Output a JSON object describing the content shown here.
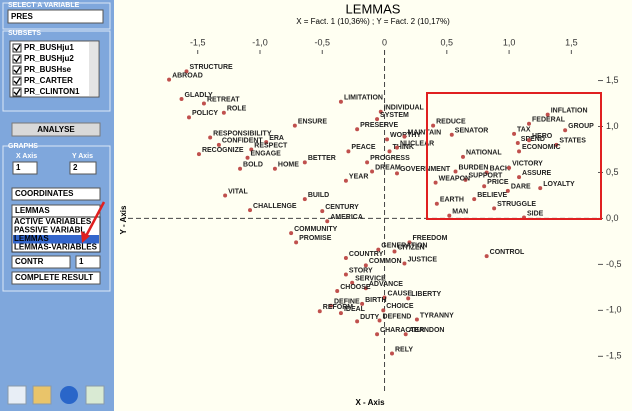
{
  "sidebar": {
    "variable_label": "SELECT A VARIABLE",
    "variable": "PRES",
    "subsets_label": "SUBSETS",
    "subsets": [
      "PR_BUSHju1",
      "PR_BUSHju2",
      "PR_BUSHse",
      "PR_CARTER",
      "PR_CLINTON1"
    ],
    "analyse_button": "ANALYSE",
    "graphs_label": "GRAPHS",
    "x_axis_label": "X Axis",
    "y_axis_label": "Y Axis",
    "x_axis_value": "1",
    "y_axis_value": "2",
    "mode": "COORDINATES",
    "element": "LEMMAS",
    "element_options": [
      "ACTIVE VARIABLES",
      "PASSIVE VARIABL",
      "LEMMAS",
      "LEMMAS-VARIABLES"
    ],
    "stat": "CONTR",
    "stat_value": "1",
    "result": "COMPLETE RESULT"
  },
  "chart_data": {
    "type": "scatter",
    "title": "LEMMAS",
    "subtitle": "X = Fact. 1 (10,36%) ; Y = Fact. 2 (10,17%)",
    "x_label": "X - Axis",
    "y_label": "Y - Axis",
    "color": "#c0504d",
    "xlim": [
      -2.14,
      1.73
    ],
    "ylim": [
      -1.91,
      2.05
    ],
    "xticks": [
      {
        "value": -1.5,
        "label": "-1,5"
      },
      {
        "value": -1,
        "label": "-1,0"
      },
      {
        "value": -0.5,
        "label": "-0,5"
      },
      0,
      {
        "value": 0.5,
        "label": "0,5"
      },
      {
        "value": 1,
        "label": "1,0"
      },
      {
        "value": 1.5,
        "label": "1,5"
      }
    ],
    "yticks": [
      {
        "value": 1.5,
        "label": "1,5"
      },
      {
        "value": 1,
        "label": "1,0"
      },
      {
        "value": 0.5,
        "label": "0,5"
      },
      {
        "value": 0,
        "label": "0,0"
      },
      {
        "value": -0.5,
        "label": "-0,5"
      },
      {
        "value": -1,
        "label": "-1,0"
      },
      {
        "value": -1.5,
        "label": "-1,5"
      }
    ],
    "labels": [
      "STRUCTURE",
      "ABROAD",
      "GLADLY",
      "RETREAT",
      "ROLE",
      "POLICY",
      "LIMITATION",
      "INDIVIDUAL",
      "SYSTEM",
      "ENSURE",
      "PRESERVE",
      "WORTHY",
      "MAINTAIN",
      "RESPONSIBILITY",
      "ERA",
      "CONFIDENT",
      "RESPECT",
      "RECOGNIZE",
      "ENGAGE",
      "BOLD",
      "HOME",
      "BETTER",
      "PEACE",
      "THINK",
      "NUCLEAR",
      "PROGRESS",
      "DREAM",
      "YEAR",
      "GOVERNMENT",
      "REDUCE",
      "SENATOR",
      "NATIONAL",
      "INFLATION",
      "FEDERAL",
      "GROUP",
      "TAX",
      "SPEND",
      "HERO",
      "STATES",
      "ECONOMIC",
      "BURDEN",
      "BACK",
      "VICTORY",
      "SUPPORT",
      "WEAPON",
      "ASSURE",
      "PRICE",
      "DARE",
      "LOYALTY",
      "BELIEVE",
      "EARTH",
      "STRUGGLE",
      "MAN",
      "SIDE",
      "CONTROL",
      "VITAL",
      "CHALLENGE",
      "BUILD",
      "CENTURY",
      "AMERICA",
      "COMMUNITY",
      "PROMISE",
      "FREEDOM",
      "GENERATION",
      "CITIZEN",
      "COUNTRY",
      "COMMON",
      "JUSTICE",
      "STORY",
      "SERVICE",
      "ADVANCE",
      "CHOOSE",
      "CAUSE",
      "LIBERTY",
      "DEFINE",
      "BIRTH",
      "REFORM",
      "IDEAL",
      "CHOICE",
      "DUTY",
      "DEFEND",
      "TYRANNY",
      "CHARACTER",
      "ABANDON",
      "RELY"
    ],
    "x": [
      -1.59,
      -1.73,
      -1.63,
      -1.45,
      -1.29,
      -1.57,
      -0.35,
      -0.03,
      -0.06,
      -0.72,
      -0.22,
      0.02,
      0.16,
      -1.4,
      -0.95,
      -1.33,
      -1.07,
      -1.49,
      -1.1,
      -1.16,
      -0.88,
      -0.64,
      -0.29,
      0.04,
      0.1,
      -0.14,
      -0.1,
      -0.31,
      0.1,
      0.39,
      0.54,
      0.63,
      1.31,
      1.16,
      1.45,
      1.04,
      1.07,
      1.16,
      1.38,
      1.08,
      0.57,
      0.82,
      1.0,
      0.65,
      0.41,
      1.08,
      0.8,
      0.99,
      1.25,
      0.72,
      0.42,
      0.88,
      0.52,
      1.12,
      0.82,
      -1.28,
      -1.08,
      -0.64,
      -0.5,
      -0.46,
      -0.75,
      -0.71,
      0.2,
      -0.05,
      0.08,
      -0.31,
      -0.15,
      0.16,
      -0.31,
      -0.26,
      -0.15,
      -0.38,
      0.0,
      0.19,
      -0.43,
      -0.18,
      -0.52,
      -0.35,
      -0.01,
      -0.22,
      -0.04,
      0.26,
      -0.06,
      0.17,
      0.06
    ],
    "values": [
      1.6,
      1.51,
      1.3,
      1.25,
      1.15,
      1.1,
      1.27,
      1.16,
      1.08,
      1.01,
      0.97,
      0.86,
      0.89,
      0.88,
      0.83,
      0.8,
      0.75,
      0.7,
      0.66,
      0.54,
      0.54,
      0.61,
      0.73,
      0.73,
      0.77,
      0.61,
      0.51,
      0.41,
      0.49,
      1.01,
      0.91,
      0.67,
      1.13,
      1.03,
      0.96,
      0.92,
      0.82,
      0.85,
      0.8,
      0.73,
      0.51,
      0.5,
      0.55,
      0.42,
      0.39,
      0.45,
      0.35,
      0.3,
      0.33,
      0.21,
      0.16,
      0.11,
      0.03,
      0.01,
      -0.41,
      0.25,
      0.09,
      0.21,
      0.08,
      -0.03,
      -0.16,
      -0.26,
      -0.26,
      -0.34,
      -0.36,
      -0.43,
      -0.51,
      -0.49,
      -0.61,
      -0.7,
      -0.76,
      -0.79,
      -0.86,
      -0.87,
      -0.95,
      -0.93,
      -1.01,
      -1.03,
      -1.0,
      -1.12,
      -1.11,
      -1.1,
      -1.26,
      -1.26,
      -1.47
    ]
  }
}
